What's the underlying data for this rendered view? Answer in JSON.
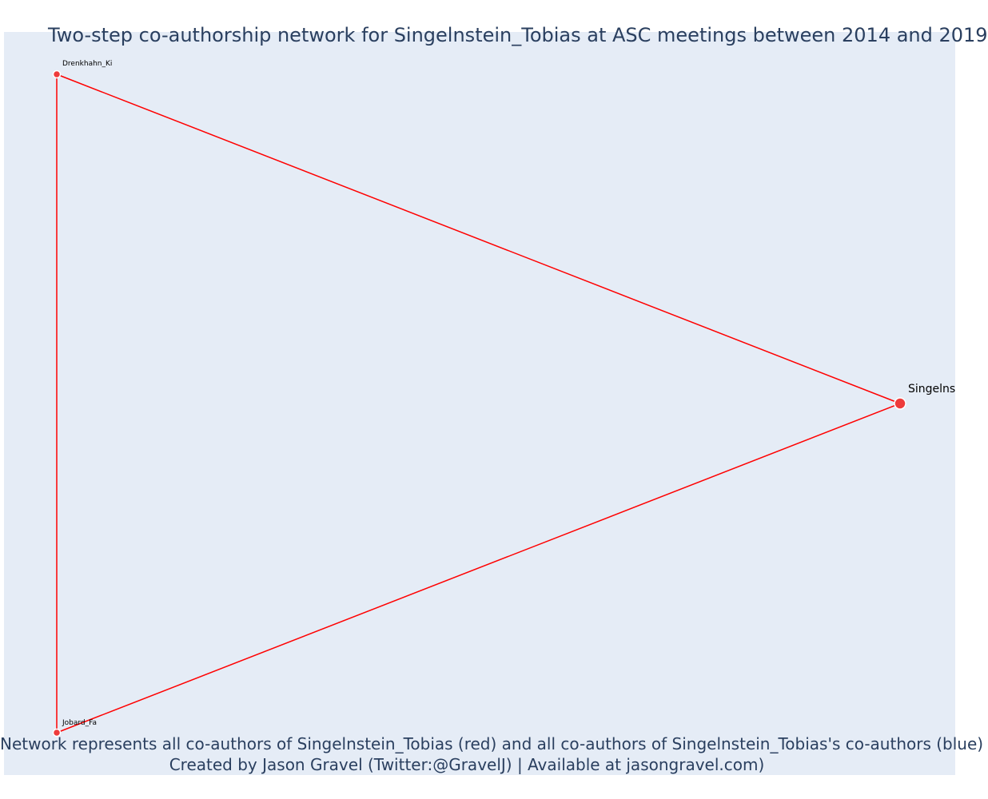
{
  "title": "Two-step co-authorship network for Singelnstein_Tobias at ASC meetings between 2014 and 2019",
  "caption": {
    "line1": "Network represents all co-authors of Singelnstein_Tobias (red) and all co-authors of Singelnstein_Tobias's co-authors (blue)",
    "line2": "Created by Jason Gravel (Twitter:@GravelJ) | Available at jasongravel.com)"
  },
  "colors": {
    "plot_background": "#e5ecf6",
    "edge": "#ff0000",
    "node_red": "#ee3b3b",
    "text": "#2a3f5f"
  },
  "chart_data": {
    "type": "network",
    "nodes": [
      {
        "id": "Singelnstein_Tobias",
        "label": "Singelns",
        "group": "red",
        "role": "focal"
      },
      {
        "id": "Drenkhahn_Ki",
        "label": "Drenkhahn_Ki",
        "group": "red",
        "role": "co-author"
      },
      {
        "id": "Jobard_Fa",
        "label": "Jobard_Fa",
        "group": "red",
        "role": "co-author"
      }
    ],
    "edges": [
      {
        "source": "Singelnstein_Tobias",
        "target": "Drenkhahn_Ki"
      },
      {
        "source": "Singelnstein_Tobias",
        "target": "Jobard_Fa"
      },
      {
        "source": "Drenkhahn_Ki",
        "target": "Jobard_Fa"
      }
    ]
  }
}
